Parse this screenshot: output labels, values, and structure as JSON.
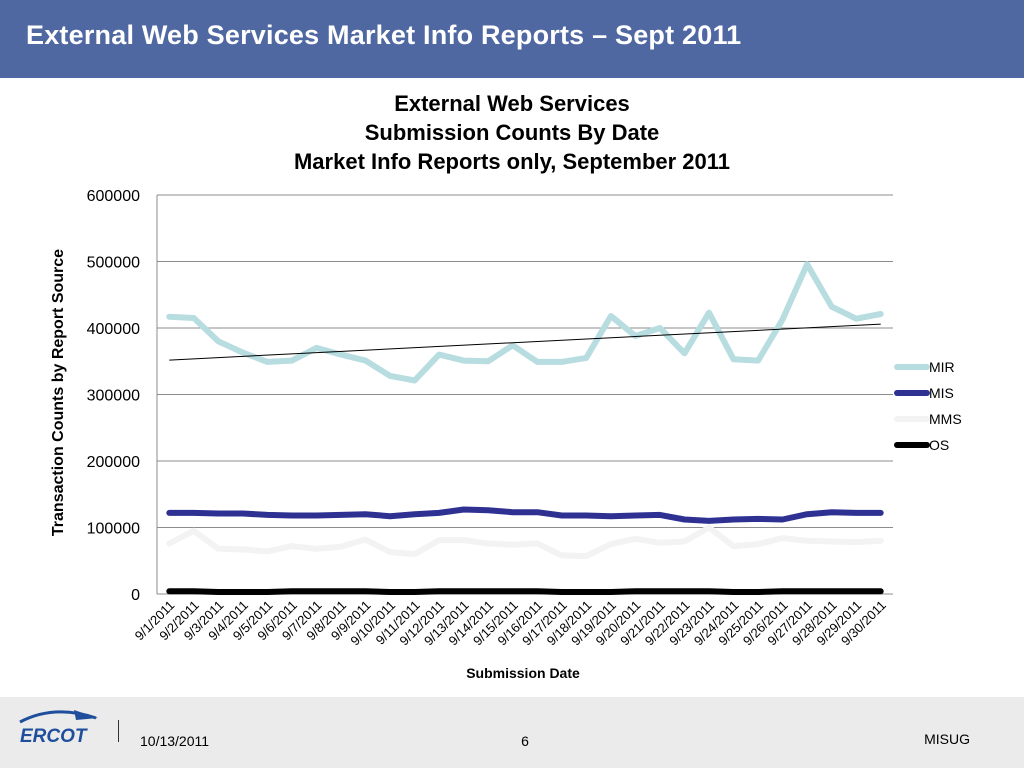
{
  "header": {
    "title": "External Web Services Market Info Reports – Sept 2011"
  },
  "chart_data": {
    "type": "line",
    "title": [
      "External Web Services",
      "Submission Counts By Date",
      "Market Info Reports only, September 2011"
    ],
    "xlabel": "Submission Date",
    "ylabel": "Transaction Counts by Report Source",
    "ylim": [
      0,
      600000
    ],
    "yticks": [
      "0",
      "100000",
      "200000",
      "300000",
      "400000",
      "500000",
      "600000"
    ],
    "grid": true,
    "legend_position": "right",
    "categories": [
      "9/1/2011",
      "9/2/2011",
      "9/3/2011",
      "9/4/2011",
      "9/5/2011",
      "9/6/2011",
      "9/7/2011",
      "9/8/2011",
      "9/9/2011",
      "9/10/2011",
      "9/11/2011",
      "9/12/2011",
      "9/13/2011",
      "9/14/2011",
      "9/15/2011",
      "9/16/2011",
      "9/17/2011",
      "9/18/2011",
      "9/19/2011",
      "9/20/2011",
      "9/21/2011",
      "9/22/2011",
      "9/23/2011",
      "9/24/2011",
      "9/25/2011",
      "9/26/2011",
      "9/27/2011",
      "9/28/2011",
      "9/29/2011",
      "9/30/2011"
    ],
    "series": [
      {
        "name": "MIR",
        "color": "#b7dde0",
        "values": [
          417000,
          415000,
          380000,
          363000,
          349000,
          351000,
          370000,
          360000,
          351000,
          328000,
          321000,
          360000,
          351000,
          350000,
          374000,
          349000,
          349000,
          355000,
          418000,
          388000,
          400000,
          362000,
          423000,
          353000,
          351000,
          413000,
          496000,
          432000,
          414000,
          421000
        ]
      },
      {
        "name": "MIS",
        "color": "#2e3192",
        "values": [
          122000,
          122000,
          121000,
          121000,
          119000,
          118000,
          118000,
          119000,
          120000,
          117000,
          120000,
          122000,
          127000,
          126000,
          123000,
          123000,
          118000,
          118000,
          117000,
          118000,
          119000,
          112000,
          110000,
          112000,
          113000,
          112000,
          120000,
          123000,
          122000,
          122000
        ]
      },
      {
        "name": "MMS",
        "color": "#f3f3f3",
        "values": [
          76000,
          95000,
          68000,
          67000,
          64000,
          72000,
          68000,
          71000,
          82000,
          63000,
          60000,
          81000,
          81000,
          76000,
          74000,
          76000,
          58000,
          57000,
          75000,
          83000,
          77000,
          79000,
          100000,
          72000,
          75000,
          84000,
          80000,
          79000,
          78000,
          80000
        ]
      },
      {
        "name": "OS",
        "color": "#000000",
        "values": [
          4000,
          4000,
          3000,
          3000,
          3000,
          4000,
          4000,
          4000,
          4000,
          3000,
          3000,
          4000,
          4000,
          4000,
          4000,
          4000,
          3000,
          3000,
          3000,
          4000,
          4000,
          4000,
          4000,
          3000,
          3000,
          4000,
          4000,
          4000,
          4000,
          4000
        ]
      }
    ],
    "trendline": {
      "series": "MIR",
      "type": "linear",
      "color": "#000000"
    }
  },
  "footer": {
    "date": "10/13/2011",
    "page": "6",
    "org": "MISUG",
    "logo_text": "ERCOT"
  }
}
